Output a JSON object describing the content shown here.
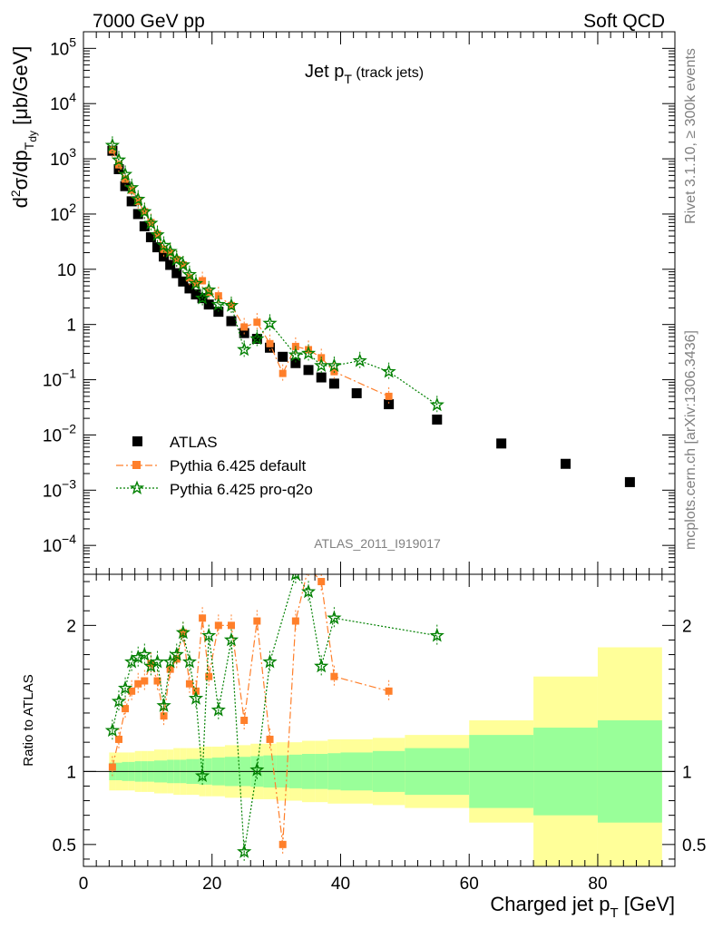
{
  "header": {
    "left": "7000 GeV pp",
    "right": "Soft QCD"
  },
  "side_texts": {
    "rivet": "Rivet 3.1.10, ≥ 300k events",
    "mcplots": "mcplots.cern.ch [arXiv:1306.3436]"
  },
  "plot_title": {
    "main": "Jet p",
    "sub": "T",
    "suffix": " (track jets)"
  },
  "watermark": "ATLAS_2011_I919017",
  "chart_data": [
    {
      "type": "scatter",
      "title": "Jet pT (track jets)",
      "xlabel": "Charged jet pT [GeV]",
      "ylabel": "d²σ/dp_T dy [μb/GeV]",
      "xlim": [
        0,
        92
      ],
      "ylim": [
        3e-05,
        200000.0
      ],
      "yscale": "log",
      "legend_position": "lower-left",
      "series": [
        {
          "name": "ATLAS",
          "color": "#000000",
          "marker": "square",
          "x": [
            4.5,
            5.5,
            6.5,
            7.5,
            8.5,
            9.5,
            10.5,
            11.5,
            12.5,
            13.5,
            14.5,
            15.5,
            16.5,
            17.5,
            18.5,
            19.5,
            21,
            23,
            25,
            27,
            29,
            31,
            33,
            35,
            37,
            39,
            42.5,
            47.5,
            55,
            65,
            75,
            85
          ],
          "y": [
            1400,
            650,
            320,
            170,
            100,
            60,
            38,
            25,
            17,
            12,
            8.5,
            6,
            4.5,
            3.5,
            3,
            2.3,
            1.7,
            1.15,
            0.7,
            0.55,
            0.38,
            0.26,
            0.2,
            0.15,
            0.11,
            0.085,
            0.057,
            0.036,
            0.019,
            0.007,
            0.003,
            0.0014
          ]
        },
        {
          "name": "Pythia 6.425 default",
          "color": "#ff7f2a",
          "marker": "square",
          "x": [
            4.5,
            5.5,
            6.5,
            7.5,
            8.5,
            9.5,
            10.5,
            11.5,
            12.5,
            13.5,
            14.5,
            15.5,
            16.5,
            17.5,
            18.5,
            19.5,
            21,
            23,
            25,
            27,
            29,
            31,
            33,
            35,
            37,
            39,
            47.5
          ],
          "y": [
            1450,
            780,
            430,
            270,
            170,
            110,
            70,
            43,
            23,
            20,
            15,
            12,
            7,
            5.5,
            6.2,
            3.8,
            3.3,
            2.2,
            0.9,
            1.1,
            0.45,
            0.13,
            0.4,
            0.35,
            0.25,
            0.14,
            0.05
          ]
        },
        {
          "name": "Pythia 6.425 pro-q2o",
          "color": "#008000",
          "marker": "star",
          "x": [
            4.5,
            5.5,
            6.5,
            7.5,
            8.5,
            9.5,
            10.5,
            11.5,
            12.5,
            13.5,
            14.5,
            15.5,
            16.5,
            17.5,
            18.5,
            19.5,
            21,
            23,
            25,
            27,
            29,
            33,
            35,
            37,
            39,
            43,
            47.5,
            55
          ],
          "y": [
            1750,
            950,
            520,
            300,
            185,
            110,
            68,
            42,
            27,
            21,
            15,
            12,
            8,
            5.5,
            3.0,
            4.2,
            2.3,
            2.2,
            0.35,
            0.55,
            1.05,
            0.28,
            0.3,
            0.18,
            0.18,
            0.22,
            0.14,
            0.035
          ]
        }
      ]
    },
    {
      "type": "scatter",
      "ylabel": "Ratio to ATLAS",
      "xlabel": "Charged jet pT [GeV]",
      "xlim": [
        0,
        92
      ],
      "ylim": [
        0.35,
        2.35
      ],
      "reference_line": 1,
      "uncertainty_bands": {
        "x_edges": [
          4,
          5,
          6,
          7,
          8,
          9,
          10,
          11,
          12,
          13,
          14,
          15,
          16,
          17,
          18,
          19,
          20,
          22,
          24,
          26,
          28,
          30,
          32,
          34,
          36,
          38,
          40,
          45,
          50,
          60,
          70,
          80,
          90
        ],
        "inner_half_width": [
          0.06,
          0.06,
          0.065,
          0.065,
          0.07,
          0.07,
          0.07,
          0.075,
          0.075,
          0.08,
          0.08,
          0.08,
          0.085,
          0.085,
          0.09,
          0.09,
          0.095,
          0.1,
          0.1,
          0.105,
          0.11,
          0.11,
          0.115,
          0.12,
          0.12,
          0.125,
          0.13,
          0.14,
          0.16,
          0.25,
          0.3,
          0.35
        ],
        "outer_half_width": [
          0.13,
          0.13,
          0.13,
          0.13,
          0.14,
          0.14,
          0.14,
          0.15,
          0.15,
          0.15,
          0.16,
          0.16,
          0.16,
          0.16,
          0.17,
          0.17,
          0.17,
          0.18,
          0.18,
          0.19,
          0.19,
          0.2,
          0.2,
          0.21,
          0.21,
          0.22,
          0.22,
          0.23,
          0.25,
          0.35,
          0.65,
          0.85
        ],
        "inner_color": "#99ff99",
        "outer_color": "#ffff99"
      },
      "series": [
        {
          "name": "Pythia 6.425 default",
          "color": "#ff7f2a",
          "marker": "square",
          "x": [
            4.5,
            5.5,
            6.5,
            7.5,
            8.5,
            9.5,
            10.5,
            11.5,
            12.5,
            13.5,
            14.5,
            15.5,
            16.5,
            17.5,
            18.5,
            19.5,
            21,
            23,
            25,
            27,
            29,
            31,
            33,
            35,
            37,
            39,
            47.5
          ],
          "y": [
            1.03,
            1.22,
            1.43,
            1.55,
            1.6,
            1.62,
            1.74,
            1.62,
            1.38,
            1.7,
            1.77,
            1.95,
            1.6,
            1.55,
            2.05,
            1.65,
            2.0,
            2.0,
            1.35,
            2.03,
            1.22,
            0.5,
            2.03,
            2.4,
            2.3,
            1.65,
            1.55
          ]
        },
        {
          "name": "Pythia 6.425 pro-q2o",
          "color": "#008000",
          "marker": "star",
          "x": [
            4.5,
            5.5,
            6.5,
            7.5,
            8.5,
            9.5,
            10.5,
            11.5,
            12.5,
            13.5,
            14.5,
            15.5,
            16.5,
            17.5,
            18.5,
            19.5,
            21,
            23,
            25,
            27,
            29,
            33,
            35,
            37,
            39,
            55
          ],
          "y": [
            1.28,
            1.48,
            1.57,
            1.75,
            1.78,
            1.8,
            1.72,
            1.75,
            1.45,
            1.75,
            1.8,
            1.95,
            1.75,
            1.5,
            0.97,
            1.93,
            1.42,
            1.9,
            0.45,
            1.01,
            1.75,
            2.35,
            2.23,
            1.72,
            2.05,
            1.93
          ]
        }
      ]
    }
  ]
}
